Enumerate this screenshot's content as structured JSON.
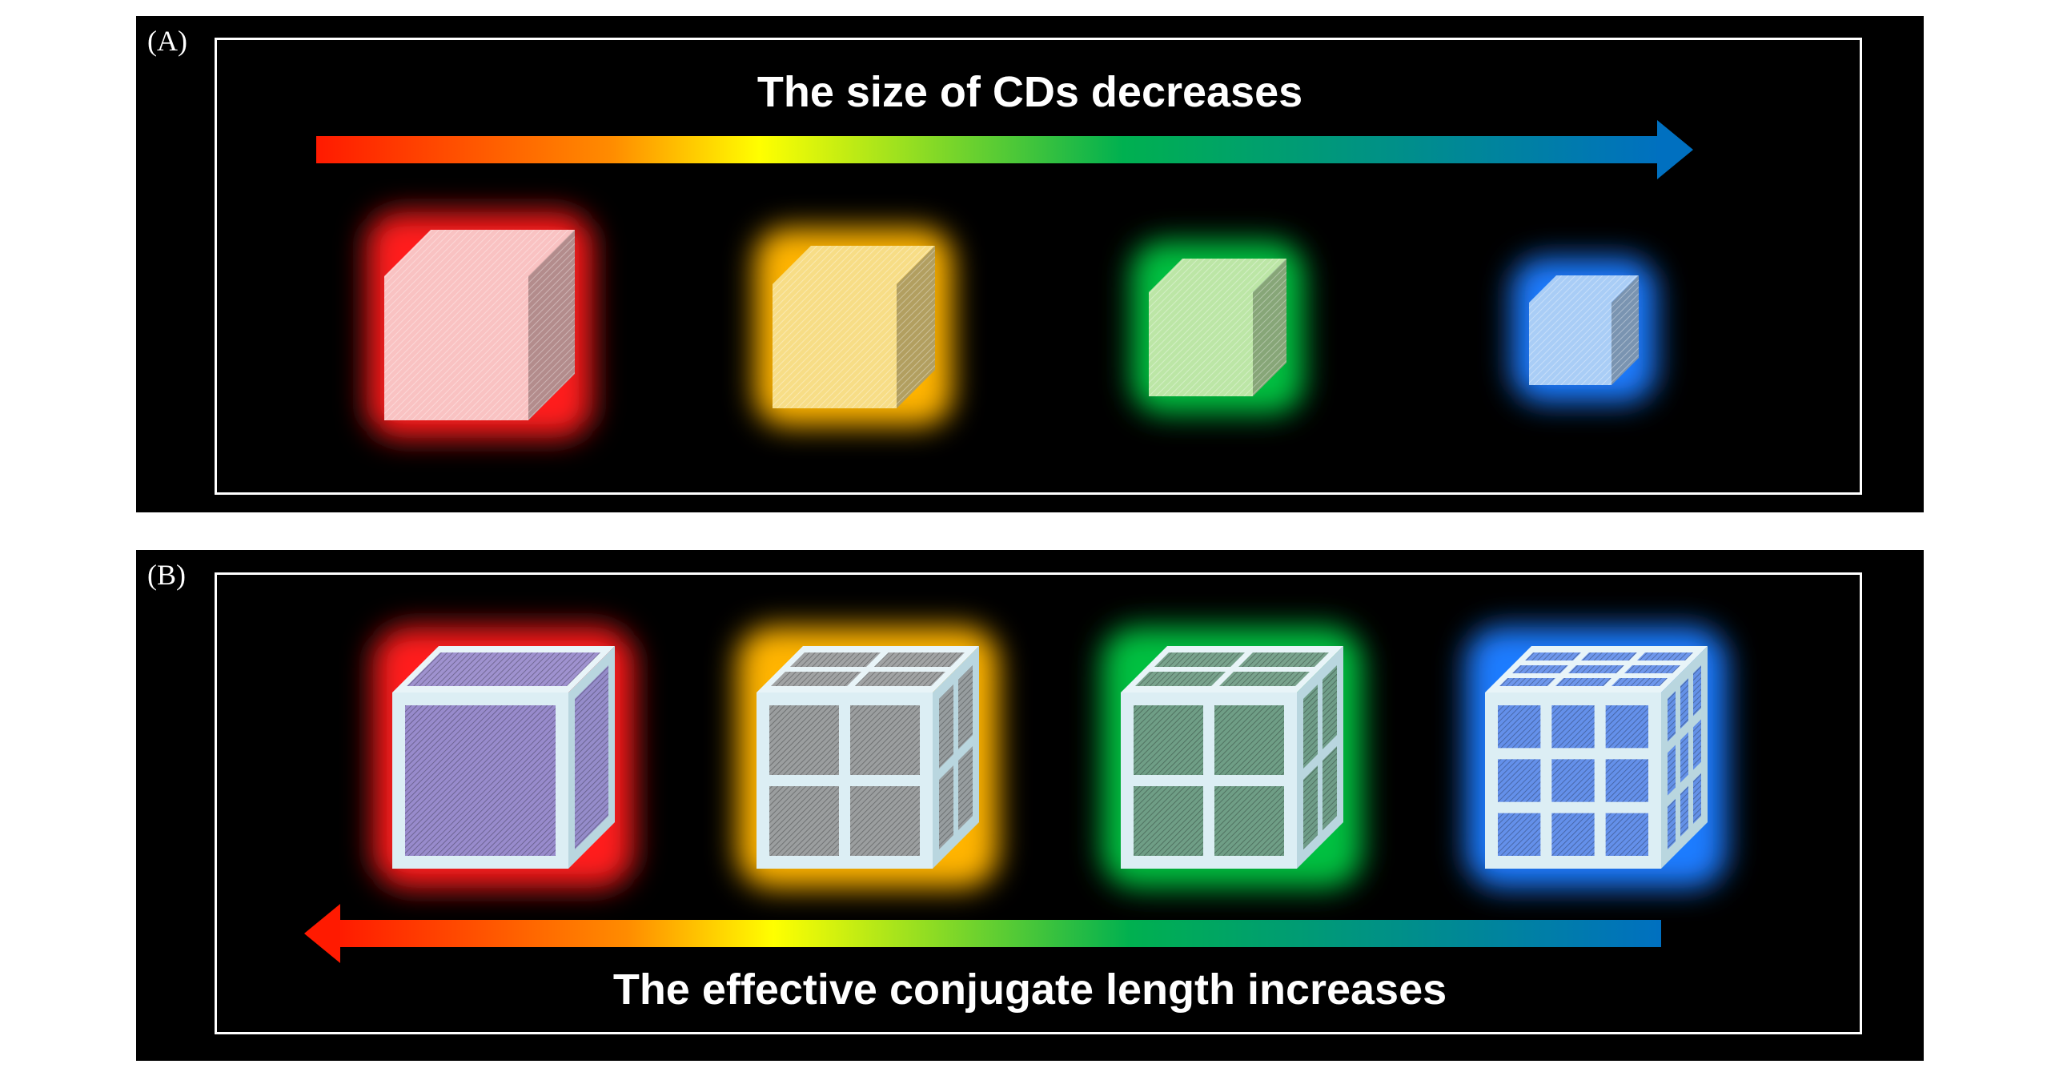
{
  "panel_a": {
    "label": "(A)",
    "caption": "The size of CDs decreases",
    "cubes": [
      {
        "color": "red",
        "glow": "#ff1a1a",
        "face": "#f9c2c2"
      },
      {
        "color": "orange",
        "glow": "#ffb400",
        "face": "#f7dd86"
      },
      {
        "color": "green",
        "glow": "#00c040",
        "face": "#bce6a6"
      },
      {
        "color": "blue",
        "glow": "#1a7cff",
        "face": "#a9cdf6"
      }
    ]
  },
  "panel_b": {
    "label": "(B)",
    "caption": "The effective conjugate length increases",
    "cubes": [
      {
        "color": "red",
        "glow": "#ff1a1a",
        "grid": 1,
        "cell": "#8c79c4"
      },
      {
        "color": "orange",
        "glow": "#ffb400",
        "grid": 2,
        "cell": "#8f8f8f"
      },
      {
        "color": "green",
        "glow": "#00c040",
        "grid": 2,
        "cell": "#5c8f72"
      },
      {
        "color": "blue",
        "glow": "#1a7cff",
        "grid": 3,
        "cell": "#4f7fe8"
      }
    ]
  },
  "arrow_gradient": [
    "#ff1a00",
    "#ff8c00",
    "#ffff00",
    "#00b050",
    "#0070c0"
  ]
}
